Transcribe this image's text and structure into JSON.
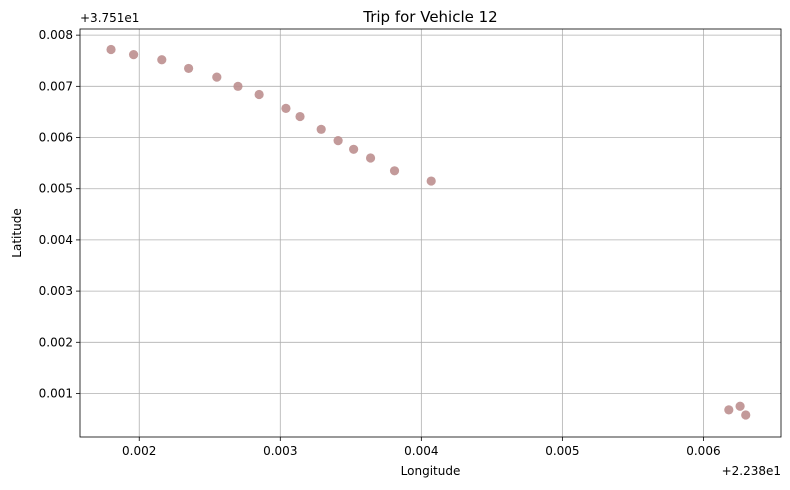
{
  "chart_data": {
    "type": "scatter",
    "title": "Trip for Vehicle 12",
    "xlabel": "Longitude",
    "ylabel": "Latitude",
    "x_offset_label": "+2.238e1",
    "y_offset_label": "+3.751e1",
    "xlim": [
      0.00158,
      0.00655
    ],
    "ylim": [
      0.00015,
      0.00812
    ],
    "x_ticks": [
      {
        "value": 0.002,
        "label": "0.002"
      },
      {
        "value": 0.003,
        "label": "0.003"
      },
      {
        "value": 0.004,
        "label": "0.004"
      },
      {
        "value": 0.005,
        "label": "0.005"
      },
      {
        "value": 0.006,
        "label": "0.006"
      }
    ],
    "y_ticks": [
      {
        "value": 0.001,
        "label": "0.001"
      },
      {
        "value": 0.002,
        "label": "0.002"
      },
      {
        "value": 0.003,
        "label": "0.003"
      },
      {
        "value": 0.004,
        "label": "0.004"
      },
      {
        "value": 0.005,
        "label": "0.005"
      },
      {
        "value": 0.006,
        "label": "0.006"
      },
      {
        "value": 0.007,
        "label": "0.007"
      },
      {
        "value": 0.008,
        "label": "0.008"
      }
    ],
    "grid": true,
    "marker_color": "#bc8f8f",
    "series": [
      {
        "x": [
          0.0018,
          0.00196,
          0.00216,
          0.00235,
          0.00255,
          0.0027,
          0.00285,
          0.00304,
          0.00314,
          0.00329,
          0.00341,
          0.00352,
          0.00364,
          0.00381,
          0.00407,
          0.00618,
          0.00626,
          0.0063
        ],
        "y": [
          0.00772,
          0.00762,
          0.00752,
          0.00735,
          0.00718,
          0.007,
          0.00684,
          0.00657,
          0.00641,
          0.00616,
          0.00594,
          0.00577,
          0.0056,
          0.00535,
          0.00515,
          0.00068,
          0.00075,
          0.00058
        ]
      }
    ]
  }
}
